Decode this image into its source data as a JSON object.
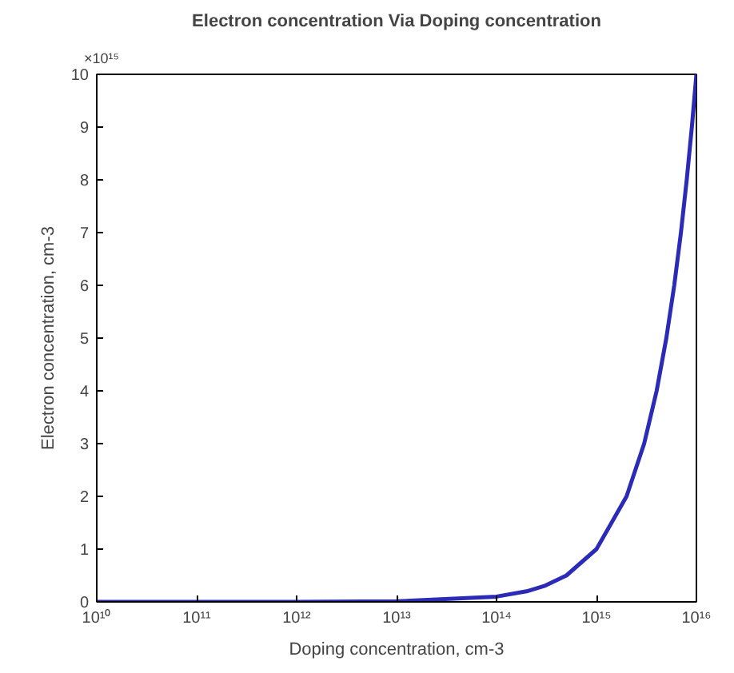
{
  "chart_data": {
    "type": "line",
    "title": "Electron concentration Via Doping concentration",
    "xlabel": "Doping concentration, cm-3",
    "ylabel": "Electron concentration, cm-3",
    "annotations": [
      "×10¹⁵"
    ],
    "log": "x",
    "x": [
      10000000000.0,
      1000000000000.0,
      10000000000000.0,
      100000000000000.0,
      200000000000000.0,
      300000000000000.0,
      500000000000000.0,
      1000000000000000.0,
      2000000000000000.0,
      3000000000000000.0,
      4000000000000000.0,
      5000000000000000.0,
      6000000000000000.0,
      7000000000000000.0,
      8000000000000000.0,
      9000000000000000.0,
      1e+16
    ],
    "series": [
      {
        "color": "#2b2bb8",
        "values": [
          0,
          0,
          0.01,
          0.1,
          0.2,
          0.3,
          0.5,
          1,
          2,
          3,
          4,
          5,
          6,
          7,
          8,
          9,
          10
        ]
      }
    ],
    "xlim": [
      10000000000.0,
      1e+16
    ],
    "xticks": [
      {
        "value": 10000000000.0,
        "label": "10¹⁰"
      },
      {
        "value": 100000000000.0,
        "label": "10¹¹"
      },
      {
        "value": 1000000000000.0,
        "label": "10¹²"
      },
      {
        "value": 10000000000000.0,
        "label": "10¹³"
      },
      {
        "value": 100000000000000.0,
        "label": "10¹⁴"
      },
      {
        "value": 1000000000000000.0,
        "label": "10¹⁵"
      },
      {
        "value": 1e+16,
        "label": "10¹⁶"
      }
    ],
    "ylim": [
      0,
      10
    ],
    "yticks": [
      0,
      1,
      2,
      3,
      4,
      5,
      6,
      7,
      8,
      9,
      10
    ],
    "grid": false,
    "marker": "none",
    "line_style": "solid"
  }
}
